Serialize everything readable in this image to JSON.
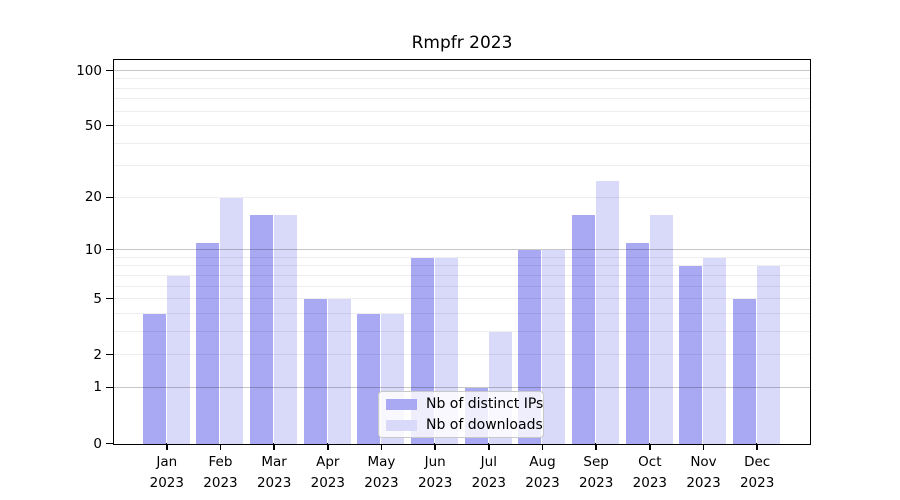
{
  "chart_data": {
    "type": "bar",
    "title": "Rmpfr 2023",
    "x_months": [
      "Jan",
      "Feb",
      "Mar",
      "Apr",
      "May",
      "Jun",
      "Jul",
      "Aug",
      "Sep",
      "Oct",
      "Nov",
      "Dec"
    ],
    "x_year": "2023",
    "series": [
      {
        "name": "Nb of distinct IPs",
        "color": "#a9a9f3",
        "values": [
          4,
          11,
          16,
          5,
          4,
          9,
          1,
          10,
          16,
          11,
          8,
          5
        ]
      },
      {
        "name": "Nb of downloads",
        "color": "#d9d9f9",
        "values": [
          7,
          20,
          16,
          5,
          4,
          9,
          3,
          10,
          25,
          16,
          9,
          8
        ]
      }
    ],
    "yscale": "log1p",
    "ylim": [
      0,
      113
    ],
    "ytick_labels": [
      0,
      1,
      2,
      5,
      10,
      20,
      50,
      100
    ],
    "grid": "both",
    "grid_major_lines": [
      1,
      10,
      100
    ],
    "grid_minor_lines": [
      2,
      3,
      4,
      5,
      6,
      7,
      8,
      9,
      20,
      30,
      40,
      50,
      60,
      70,
      80,
      90
    ],
    "legend_position": "lower center"
  },
  "legend": {
    "items": [
      {
        "label": "Nb of distinct IPs",
        "color": "#a9a9f3"
      },
      {
        "label": "Nb of downloads",
        "color": "#d9d9f9"
      }
    ]
  }
}
